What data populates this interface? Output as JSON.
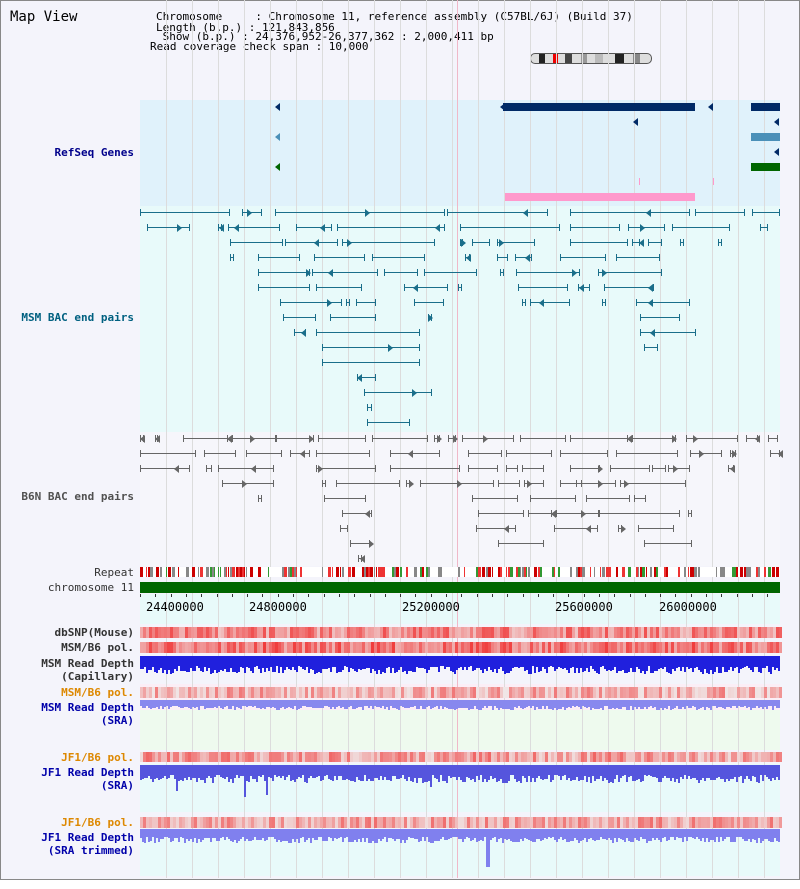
{
  "title": "Map View",
  "header": {
    "chromosome": "Chromosome     : Chromosome 11, reference assembly (C57BL/6J) (Build 37)",
    "length": "Length (b.p.) : 121,843,856",
    "show": " Show (b.p.) : 24,376,952-26,377,362 : 2,000,411 bp",
    "coverage": "Read coverage check span : 10,000"
  },
  "tracks": {
    "refseq": "RefSeq Genes",
    "msm_bac": "MSM BAC end pairs",
    "b6n_bac": "B6N BAC end pairs",
    "repeat": "Repeat",
    "chromosome": "chromosome 11",
    "dbsnp": "dbSNP(Mouse)",
    "msm_pol": "MSM/B6 pol.",
    "msm_depth": "MSM Read Depth\n(Capillary)",
    "msm_pol2": "MSM/B6 pol.",
    "msm_sra": "MSM Read Depth\n(SRA)",
    "jf1_pol": "JF1/B6 pol.",
    "jf1_sra": "JF1 Read Depth\n(SRA)",
    "jf1_pol2": "JF1/B6 pol.",
    "jf1_trim": "JF1 Read Depth\n(SRA trimmed)"
  },
  "axis_ticks": [
    "24400000",
    "24800000",
    "25200000",
    "25600000",
    "26000000"
  ],
  "colors": {
    "refseq_label": "#00008b",
    "msm_label": "#006080",
    "b6n_label": "#505050",
    "orange_label": "#dd8800",
    "blue_label": "#0000aa",
    "gene_dark": "#002a66",
    "gene_teal": "#4a90b8",
    "gene_green": "#006600",
    "gene_pink": "#ff99cc",
    "bac_msm": "#1a6e8a",
    "bac_b6n": "#666666"
  }
}
